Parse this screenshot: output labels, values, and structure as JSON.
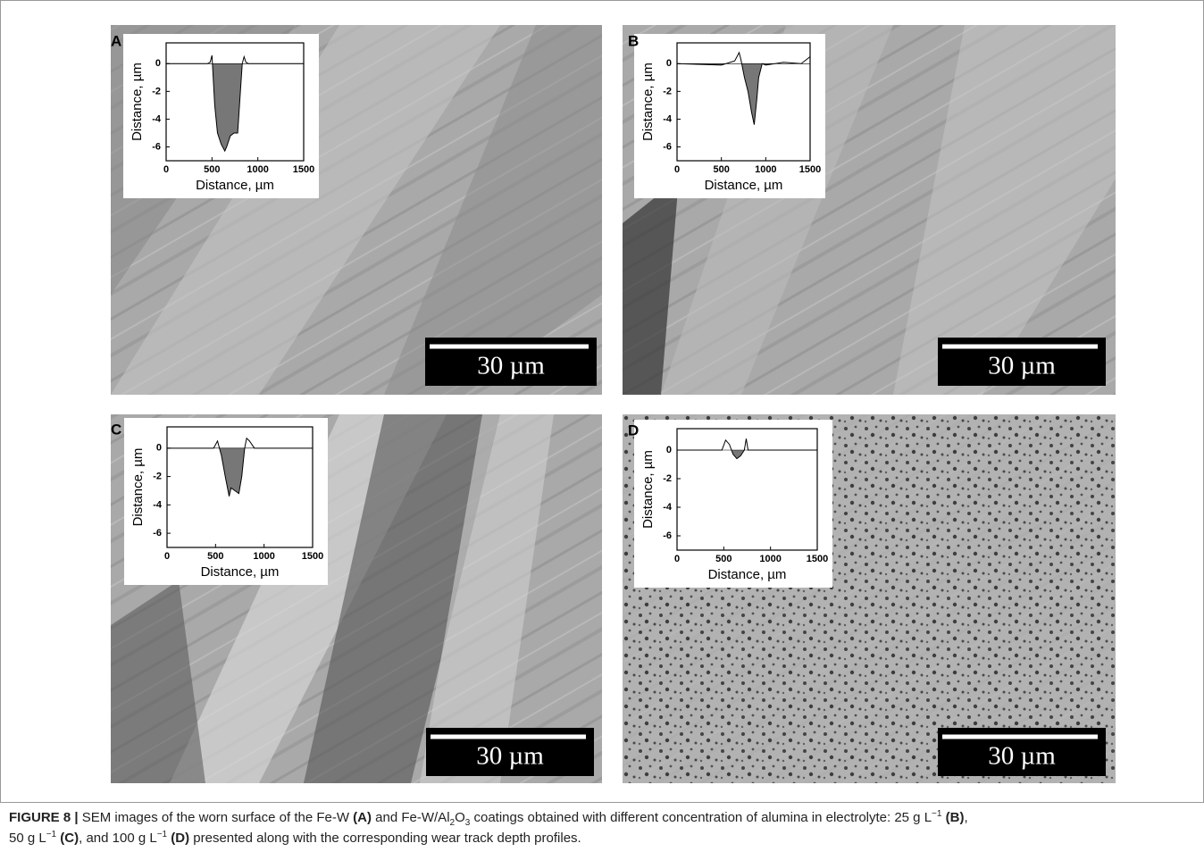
{
  "chart_data": [
    {
      "type": "line",
      "panel": "A",
      "scale_bar": "30 µm",
      "xlabel": "Distance, µm",
      "ylabel": "Distance, µm",
      "x": [
        0,
        450,
        480,
        500,
        530,
        560,
        600,
        640,
        660,
        700,
        740,
        780,
        800,
        830,
        850,
        870,
        900,
        1500
      ],
      "values": [
        0,
        0,
        0.1,
        0.6,
        -3,
        -5,
        -5.8,
        -6.3,
        -6,
        -5.2,
        -5,
        -5,
        -3,
        0,
        0.5,
        0.1,
        0,
        0
      ],
      "xlim": [
        0,
        1500
      ],
      "ylim": [
        -7,
        1.5
      ],
      "xticks": [
        0,
        500,
        1000,
        1500
      ],
      "yticks": [
        0,
        -2,
        -4,
        -6
      ],
      "color": "#000000",
      "fill": "#777777"
    },
    {
      "type": "line",
      "panel": "B",
      "scale_bar": "30 µm",
      "xlabel": "Distance, µm",
      "ylabel": "Distance, µm",
      "x": [
        0,
        500,
        600,
        650,
        700,
        720,
        760,
        800,
        840,
        870,
        900,
        920,
        960,
        1000,
        1200,
        1400,
        1500
      ],
      "values": [
        0,
        -0.1,
        0.1,
        0.2,
        0.8,
        0.3,
        -1,
        -2,
        -3.5,
        -4.4,
        -2.5,
        -1,
        0,
        -0.1,
        0.1,
        0,
        0.5
      ],
      "xlim": [
        0,
        1500
      ],
      "ylim": [
        -7,
        1.5
      ],
      "xticks": [
        0,
        500,
        1000,
        1500
      ],
      "yticks": [
        0,
        -2,
        -4,
        -6
      ],
      "color": "#000000",
      "fill": "#777777"
    },
    {
      "type": "line",
      "panel": "C",
      "scale_bar": "30 µm",
      "xlabel": "Distance, µm",
      "ylabel": "Distance, µm",
      "x": [
        0,
        480,
        520,
        560,
        600,
        640,
        660,
        700,
        740,
        770,
        800,
        820,
        850,
        900,
        1500
      ],
      "values": [
        0,
        0,
        0.5,
        -0.5,
        -2,
        -3.4,
        -2.8,
        -3,
        -3.2,
        -2,
        0,
        0.7,
        0.5,
        0,
        0
      ],
      "xlim": [
        0,
        1500
      ],
      "ylim": [
        -7,
        1.5
      ],
      "xticks": [
        0,
        500,
        1000,
        1500
      ],
      "yticks": [
        0,
        -2,
        -4,
        -6
      ],
      "color": "#000000",
      "fill": "#777777"
    },
    {
      "type": "line",
      "panel": "D",
      "scale_bar": "30 µm",
      "xlabel": "Distance, µm",
      "ylabel": "Distance, µm",
      "x": [
        0,
        480,
        520,
        560,
        600,
        640,
        680,
        720,
        740,
        760,
        1500
      ],
      "values": [
        0,
        0,
        0.7,
        0.4,
        -0.3,
        -0.6,
        -0.4,
        0,
        0.8,
        0,
        0
      ],
      "xlim": [
        0,
        1500
      ],
      "ylim": [
        -7,
        1.5
      ],
      "xticks": [
        0,
        500,
        1000,
        1500
      ],
      "yticks": [
        0,
        -2,
        -4,
        -6
      ],
      "color": "#000000",
      "fill": "#777777"
    }
  ],
  "caption": [
    [
      {
        "text": "FIGURE 8 |",
        "bold": true
      },
      {
        "text": " SEM images of the worn surface of the Fe-W "
      },
      {
        "text": "(A)",
        "bold": true
      },
      {
        "text": " and Fe-W/Al"
      },
      {
        "text": "2",
        "sub": true
      },
      {
        "text": "O"
      },
      {
        "text": "3",
        "sub": true
      },
      {
        "text": " coatings obtained with different concentration of alumina in electrolyte: 25 g L"
      },
      {
        "text": "−1",
        "sup": true
      },
      {
        "text": " "
      },
      {
        "text": "(B)",
        "bold": true
      },
      {
        "text": ","
      }
    ],
    [
      {
        "text": "50 g L"
      },
      {
        "text": "−1",
        "sup": true
      },
      {
        "text": " "
      },
      {
        "text": "(C)",
        "bold": true
      },
      {
        "text": ", and 100 g L"
      },
      {
        "text": "−1",
        "sup": true
      },
      {
        "text": " "
      },
      {
        "text": "(D)",
        "bold": true
      },
      {
        "text": " presented along with the corresponding wear track depth profiles."
      }
    ]
  ]
}
